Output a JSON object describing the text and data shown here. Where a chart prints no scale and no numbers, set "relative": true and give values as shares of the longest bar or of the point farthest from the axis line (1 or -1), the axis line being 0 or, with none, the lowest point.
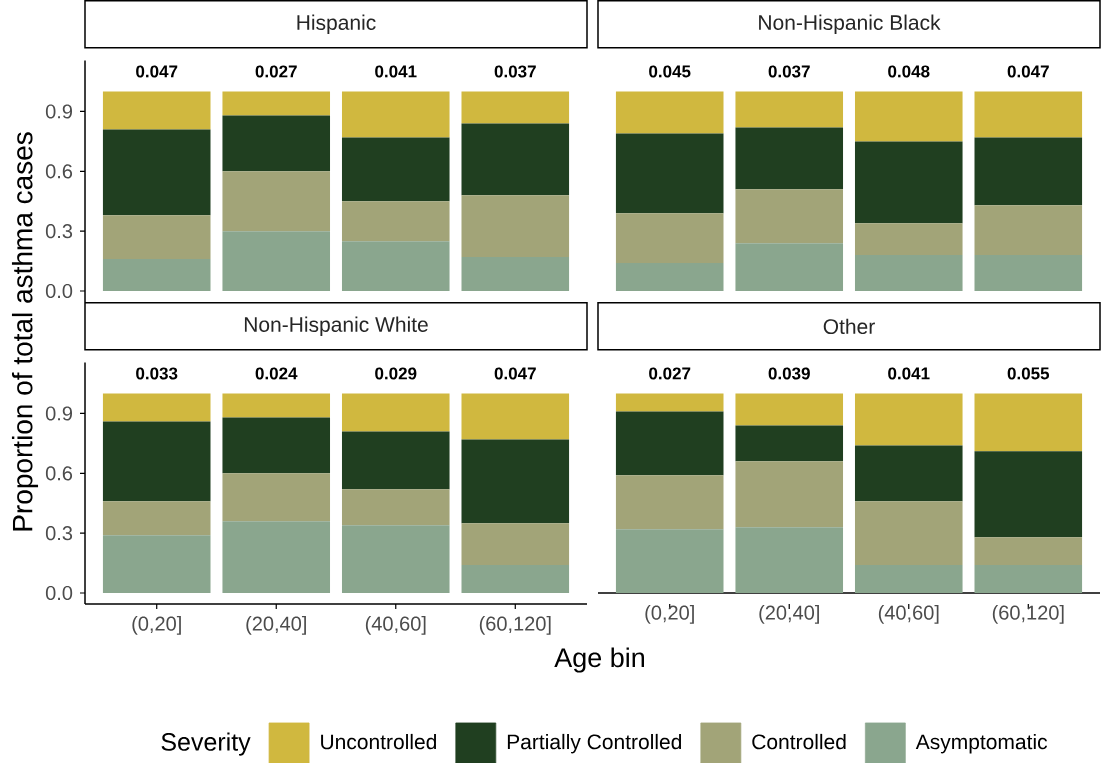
{
  "chart_data": [
    {
      "type": "bar",
      "title": "Hispanic",
      "ylabel": "Proportion of total asthma cases",
      "categories": [
        null,
        null,
        null,
        null
      ],
      "stacked": true,
      "series": [
        {
          "color": "#8AA68E",
          "values": [
            0.16,
            0.3,
            0.25,
            0.17
          ]
        },
        {
          "color": "#A2A478",
          "values": [
            0.22,
            0.3,
            0.2,
            0.31
          ]
        },
        {
          "color": "#203F20",
          "values": [
            0.43,
            0.28,
            0.32,
            0.36
          ]
        },
        {
          "color": "#D0B83F",
          "values": [
            0.19,
            0.12,
            0.23,
            0.16
          ]
        }
      ],
      "ylim": [
        -0.055,
        1.155
      ],
      "yticks": [
        {
          "value": 0,
          "label": "0.0"
        },
        0.3,
        0.6,
        0.9
      ],
      "tick_labels": "y",
      "annotations": [
        "0.047",
        "0.027",
        "0.041",
        "0.037"
      ]
    },
    {
      "type": "bar",
      "title": "Non-Hispanic Black",
      "categories": [
        null,
        null,
        null,
        null
      ],
      "stacked": true,
      "relative": true,
      "series": [
        {
          "color": "#8AA68E",
          "values": [
            0.14,
            0.24,
            0.18,
            0.18
          ]
        },
        {
          "color": "#A2A478",
          "values": [
            0.25,
            0.27,
            0.16,
            0.25
          ]
        },
        {
          "color": "#203F20",
          "values": [
            0.4,
            0.31,
            0.41,
            0.34
          ]
        },
        {
          "color": "#D0B83F",
          "values": [
            0.21,
            0.18,
            0.25,
            0.23
          ]
        }
      ],
      "tick_labels": false,
      "annotations": [
        "0.045",
        "0.037",
        "0.048",
        "0.047"
      ]
    },
    {
      "type": "bar",
      "title": "Non-Hispanic White",
      "xlabel": "Age bin",
      "legend": "bottom",
      "legend_title": "Severity",
      "categories": [
        "(0,20]",
        "(20,40]",
        "(40,60]",
        "(60,120]"
      ],
      "stacked": true,
      "series": [
        {
          "name": "Asymptomatic",
          "color": "#8AA68E",
          "values": [
            0.29,
            0.36,
            0.34,
            0.14
          ]
        },
        {
          "name": "Controlled",
          "color": "#A2A478",
          "values": [
            0.17,
            0.24,
            0.18,
            0.21
          ]
        },
        {
          "name": "Partially Controlled",
          "color": "#203F20",
          "values": [
            0.4,
            0.28,
            0.29,
            0.42
          ]
        },
        {
          "name": "Uncontrolled",
          "color": "#D0B83F",
          "values": [
            0.14,
            0.12,
            0.19,
            0.23
          ]
        }
      ],
      "ylim": [
        -0.055,
        1.155
      ],
      "yticks": [
        {
          "value": 0,
          "label": "0.0"
        },
        0.3,
        0.6,
        0.9
      ],
      "annotations": [
        "0.033",
        "0.024",
        "0.029",
        "0.047"
      ]
    },
    {
      "type": "bar",
      "title": "Other",
      "categories": [
        "(0,20]",
        "(20,40]",
        "(40,60]",
        "(60,120]"
      ],
      "stacked": true,
      "relative": true,
      "series": [
        {
          "color": "#8AA68E",
          "values": [
            0.32,
            0.33,
            0.14,
            0.14
          ]
        },
        {
          "color": "#A2A478",
          "values": [
            0.27,
            0.33,
            0.32,
            0.14
          ]
        },
        {
          "color": "#203F20",
          "values": [
            0.32,
            0.18,
            0.28,
            0.43
          ]
        },
        {
          "color": "#D0B83F",
          "values": [
            0.09,
            0.16,
            0.26,
            0.29
          ]
        }
      ],
      "tick_labels": "x",
      "annotations": [
        "0.027",
        "0.039",
        "0.041",
        "0.055"
      ]
    }
  ]
}
